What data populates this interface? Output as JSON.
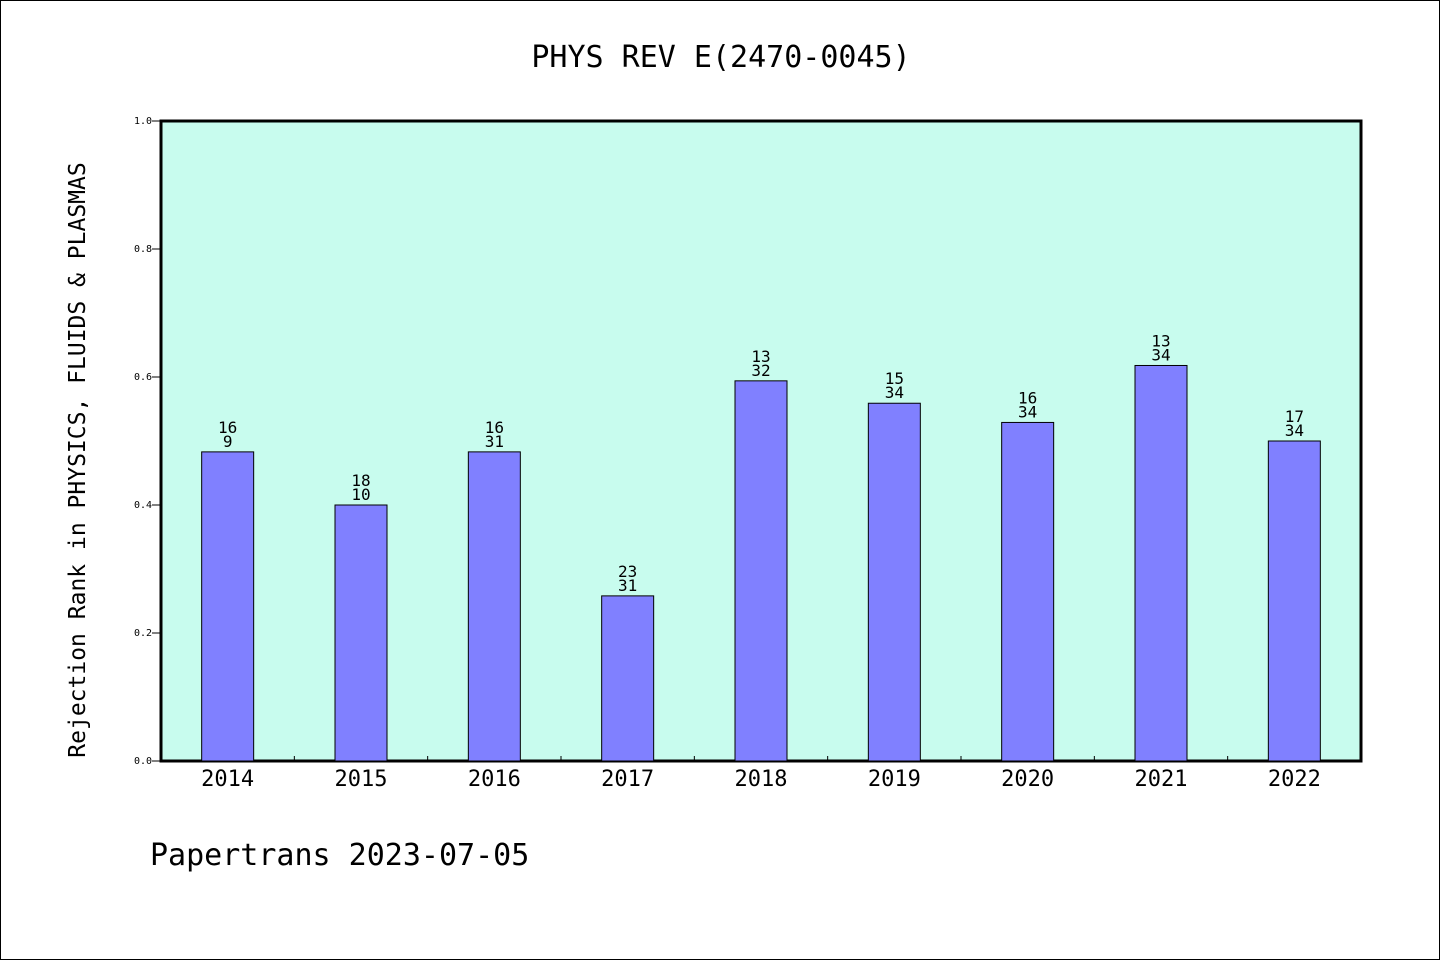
{
  "chart_data": {
    "type": "bar",
    "title": "PHYS REV E(2470-0045)",
    "ylabel": "Rejection Rank in PHYSICS, FLUIDS & PLASMAS",
    "xlabel": "",
    "categories": [
      "2014",
      "2015",
      "2016",
      "2017",
      "2018",
      "2019",
      "2020",
      "2021",
      "2022"
    ],
    "values": [
      0.483,
      0.4,
      0.483,
      0.258,
      0.594,
      0.559,
      0.529,
      0.618,
      0.5
    ],
    "labels_top": [
      "16",
      "18",
      "16",
      "23",
      "13",
      "15",
      "16",
      "13",
      "17"
    ],
    "labels_bottom": [
      "9",
      "10",
      "31",
      "31",
      "32",
      "34",
      "34",
      "34",
      "34"
    ],
    "ylim": [
      0.0,
      1.0
    ],
    "yticks": [
      "0.0",
      "0.2",
      "0.4",
      "0.6",
      "0.8",
      "1.0"
    ],
    "grid": false,
    "plot_background": "#c8fcee",
    "bar_color": "#8080ff"
  },
  "footer": "Papertrans 2023-07-05"
}
